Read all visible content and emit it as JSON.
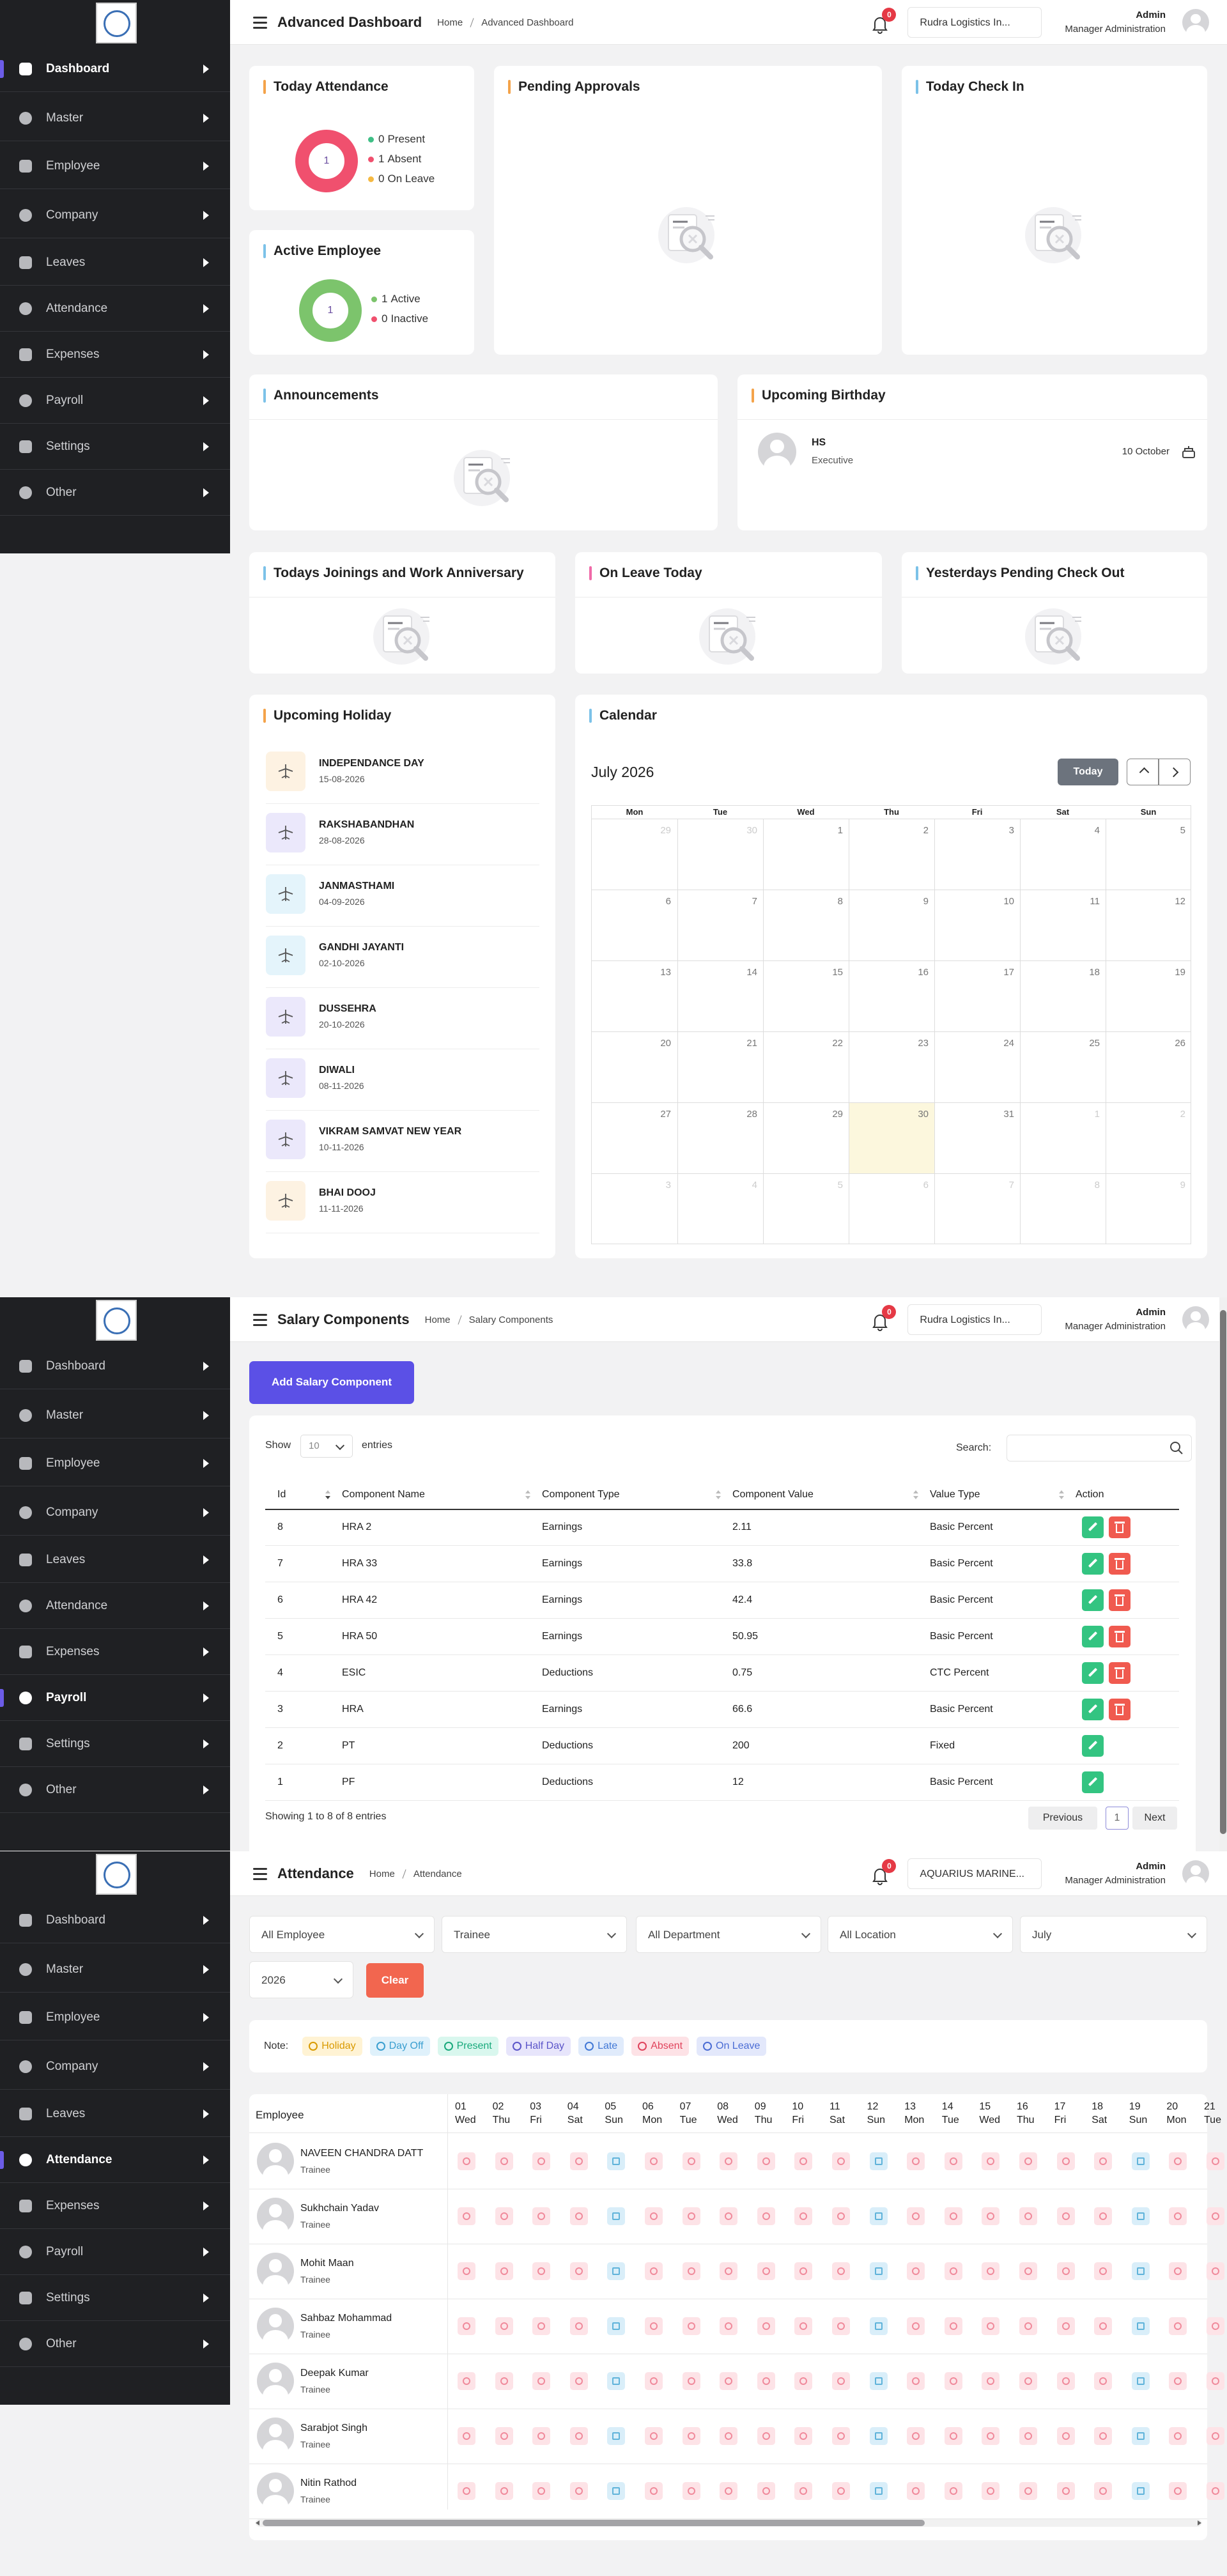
{
  "sidebar": {
    "items": [
      "Dashboard",
      "Master",
      "Employee",
      "Company",
      "Leaves",
      "Attendance",
      "Expenses",
      "Payroll",
      "Settings",
      "Other"
    ]
  },
  "dashboard": {
    "header": {
      "title": "Advanced Dashboard",
      "breadcrumb": [
        "Home",
        "Advanced Dashboard"
      ],
      "notifications": 0,
      "company": "Rudra Logistics In...",
      "user": "Admin",
      "role": "Manager Administration"
    },
    "today_attendance": {
      "title": "Today Attendance",
      "total": 1,
      "legend": [
        {
          "value": 0,
          "label": "Present",
          "color": "#3fbf86"
        },
        {
          "value": 1,
          "label": "Absent",
          "color": "#f0506e"
        },
        {
          "value": 0,
          "label": "On Leave",
          "color": "#f5b942"
        }
      ]
    },
    "pending_approvals": {
      "title": "Pending Approvals"
    },
    "today_check_in": {
      "title": "Today Check In"
    },
    "active_employee": {
      "title": "Active Employee",
      "total": 1,
      "legend": [
        {
          "value": 1,
          "label": "Active",
          "color": "#7cc46c"
        },
        {
          "value": 0,
          "label": "Inactive",
          "color": "#f0506e"
        }
      ]
    },
    "announcements": {
      "title": "Announcements"
    },
    "upcoming_birthday": {
      "title": "Upcoming Birthday",
      "items": [
        {
          "initials": "HS",
          "designation": "Executive",
          "date": "10 October"
        }
      ]
    },
    "todays_joinings": {
      "title": "Todays Joinings and Work Anniversary"
    },
    "on_leave_today": {
      "title": "On Leave Today"
    },
    "yesterdays_pending_check_out": {
      "title": "Yesterdays Pending Check Out"
    },
    "upcoming_holiday": {
      "title": "Upcoming Holiday",
      "items": [
        {
          "name": "INDEPENDANCE DAY",
          "date": "15-08-2026"
        },
        {
          "name": "RAKSHABANDHAN",
          "date": "28-08-2026"
        },
        {
          "name": "JANMASTHAMI",
          "date": "04-09-2026"
        },
        {
          "name": "GANDHI JAYANTI",
          "date": "02-10-2026"
        },
        {
          "name": "DUSSEHRA",
          "date": "20-10-2026"
        },
        {
          "name": "DIWALI",
          "date": "08-11-2026"
        },
        {
          "name": "VIKRAM SAMVAT NEW YEAR",
          "date": "10-11-2026"
        },
        {
          "name": "BHAI DOOJ",
          "date": "11-11-2026"
        }
      ]
    },
    "calendar": {
      "title": "Calendar",
      "month": "July 2026",
      "today_button": "Today",
      "weekdays": [
        "Mon",
        "Tue",
        "Wed",
        "Thu",
        "Fri",
        "Sat",
        "Sun"
      ],
      "weeks": [
        [
          29,
          30,
          1,
          2,
          3,
          4,
          5
        ],
        [
          6,
          7,
          8,
          9,
          10,
          11,
          12
        ],
        [
          13,
          14,
          15,
          16,
          17,
          18,
          19
        ],
        [
          20,
          21,
          22,
          23,
          24,
          25,
          26
        ],
        [
          27,
          28,
          29,
          30,
          31,
          1,
          2
        ],
        [
          3,
          4,
          5,
          6,
          7,
          8,
          9
        ]
      ]
    }
  },
  "salary_components": {
    "header": {
      "title": "Salary Components",
      "breadcrumb": [
        "Home",
        "Salary Components"
      ],
      "notifications": 0,
      "company": "Rudra Logistics In...",
      "user": "Admin",
      "role": "Manager Administration"
    },
    "add_button": "Add Salary Component",
    "show_label": "Show",
    "page_length": 10,
    "entries_label": "entries",
    "search_label": "Search:",
    "columns": [
      "Id",
      "Component Name",
      "Component Type",
      "Component Value",
      "Value Type",
      "Action"
    ],
    "rows": [
      [
        8,
        "HRA 2",
        "Earnings",
        2.11,
        "Basic Percent"
      ],
      [
        7,
        "HRA 33",
        "Earnings",
        33.8,
        "Basic Percent"
      ],
      [
        6,
        "HRA 42",
        "Earnings",
        42.4,
        "Basic Percent"
      ],
      [
        5,
        "HRA 50",
        "Earnings",
        50.95,
        "Basic Percent"
      ],
      [
        4,
        "ESIC",
        "Deductions",
        0.75,
        "CTC Percent"
      ],
      [
        3,
        "HRA",
        "Earnings",
        66.6,
        "Basic Percent"
      ],
      [
        2,
        "PT",
        "Deductions",
        200,
        "Fixed"
      ],
      [
        1,
        "PF",
        "Deductions",
        12,
        "Basic Percent"
      ]
    ],
    "info": "Showing 1 to 8 of 8 entries",
    "pagination": {
      "previous": "Previous",
      "page": 1,
      "next": "Next"
    }
  },
  "attendance": {
    "header": {
      "title": "Attendance",
      "breadcrumb": [
        "Home",
        "Attendance"
      ],
      "notifications": 0,
      "company": "AQUARIUS MARINE...",
      "user": "Admin",
      "role": "Manager Administration"
    },
    "filters": [
      "All Employee",
      "Trainee",
      "All Department",
      "All Location",
      "July",
      "2026"
    ],
    "clear_button": "Clear",
    "note_label": "Note:",
    "legend": [
      {
        "label": "Holiday",
        "color": "#d99a00",
        "background": "#fff3d4"
      },
      {
        "label": "Day Off",
        "color": "#3a9fd0",
        "background": "#dff1fb"
      },
      {
        "label": "Present",
        "color": "#18a97b",
        "background": "#d9f7ee"
      },
      {
        "label": "Half Day",
        "color": "#5b55c9",
        "background": "#e7e5fb"
      },
      {
        "label": "Late",
        "color": "#4178d6",
        "background": "#e0ebfb"
      },
      {
        "label": "Absent",
        "color": "#e0435c",
        "background": "#fde2e6"
      },
      {
        "label": "On Leave",
        "color": "#4a6cd4",
        "background": "#e3e8fb"
      }
    ],
    "employee_header": "Employee",
    "days": [
      {
        "day": "01",
        "weekday": "Wed"
      },
      {
        "day": "02",
        "weekday": "Thu"
      },
      {
        "day": "03",
        "weekday": "Fri"
      },
      {
        "day": "04",
        "weekday": "Sat"
      },
      {
        "day": "05",
        "weekday": "Sun"
      },
      {
        "day": "06",
        "weekday": "Mon"
      },
      {
        "day": "07",
        "weekday": "Tue"
      },
      {
        "day": "08",
        "weekday": "Wed"
      },
      {
        "day": "09",
        "weekday": "Thu"
      },
      {
        "day": "10",
        "weekday": "Fri"
      },
      {
        "day": "11",
        "weekday": "Sat"
      },
      {
        "day": "12",
        "weekday": "Sun"
      },
      {
        "day": "13",
        "weekday": "Mon"
      },
      {
        "day": "14",
        "weekday": "Tue"
      },
      {
        "day": "15",
        "weekday": "Wed"
      },
      {
        "day": "16",
        "weekday": "Thu"
      },
      {
        "day": "17",
        "weekday": "Fri"
      },
      {
        "day": "18",
        "weekday": "Sat"
      },
      {
        "day": "19",
        "weekday": "Sun"
      },
      {
        "day": "20",
        "weekday": "Mon"
      },
      {
        "day": "21",
        "weekday": "Tue"
      }
    ],
    "employees": [
      {
        "name": "NAVEEN CHANDRA DATT",
        "designation": "Trainee"
      },
      {
        "name": "Sukhchain Yadav",
        "designation": "Trainee"
      },
      {
        "name": "Mohit Maan",
        "designation": "Trainee"
      },
      {
        "name": "Sahbaz Mohammad",
        "designation": "Trainee"
      },
      {
        "name": "Deepak Kumar",
        "designation": "Trainee"
      },
      {
        "name": "Sarabjot Singh",
        "designation": "Trainee"
      },
      {
        "name": "Nitin Rathod",
        "designation": "Trainee"
      }
    ]
  }
}
